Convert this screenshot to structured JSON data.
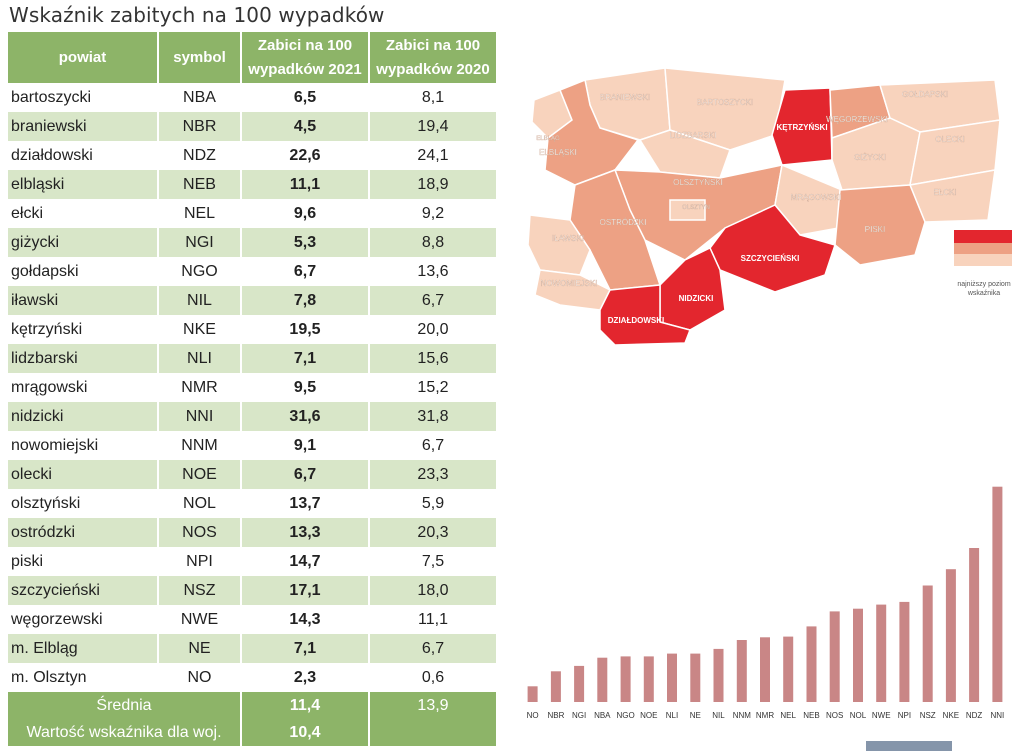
{
  "page": {
    "title": "Wskaźnik zabitych na 100 wypadków"
  },
  "table": {
    "headers": {
      "powiat": "powiat",
      "symbol": "symbol",
      "y2021_line1": "Zabici na 100",
      "y2021_line2": "wypadków 2021",
      "y2020_line1": "Zabici na 100",
      "y2020_line2": "wypadków 2020"
    },
    "rows": [
      {
        "name": "bartoszycki",
        "symbol": "NBA",
        "v2021": "6,5",
        "v2020": "8,1"
      },
      {
        "name": "braniewski",
        "symbol": "NBR",
        "v2021": "4,5",
        "v2020": "19,4"
      },
      {
        "name": "działdowski",
        "symbol": "NDZ",
        "v2021": "22,6",
        "v2020": "24,1"
      },
      {
        "name": "elbląski",
        "symbol": "NEB",
        "v2021": "11,1",
        "v2020": "18,9"
      },
      {
        "name": "ełcki",
        "symbol": "NEL",
        "v2021": "9,6",
        "v2020": "9,2"
      },
      {
        "name": "giżycki",
        "symbol": "NGI",
        "v2021": "5,3",
        "v2020": "8,8"
      },
      {
        "name": "gołdapski",
        "symbol": "NGO",
        "v2021": "6,7",
        "v2020": "13,6"
      },
      {
        "name": "iławski",
        "symbol": "NIL",
        "v2021": "7,8",
        "v2020": "6,7"
      },
      {
        "name": "kętrzyński",
        "symbol": "NKE",
        "v2021": "19,5",
        "v2020": "20,0"
      },
      {
        "name": "lidzbarski",
        "symbol": "NLI",
        "v2021": "7,1",
        "v2020": "15,6"
      },
      {
        "name": "mrągowski",
        "symbol": "NMR",
        "v2021": "9,5",
        "v2020": "15,2"
      },
      {
        "name": "nidzicki",
        "symbol": "NNI",
        "v2021": "31,6",
        "v2020": "31,8"
      },
      {
        "name": "nowomiejski",
        "symbol": "NNM",
        "v2021": "9,1",
        "v2020": "6,7"
      },
      {
        "name": "olecki",
        "symbol": "NOE",
        "v2021": "6,7",
        "v2020": "23,3"
      },
      {
        "name": "olsztyński",
        "symbol": "NOL",
        "v2021": "13,7",
        "v2020": "5,9"
      },
      {
        "name": "ostródzki",
        "symbol": "NOS",
        "v2021": "13,3",
        "v2020": "20,3"
      },
      {
        "name": "piski",
        "symbol": "NPI",
        "v2021": "14,7",
        "v2020": "7,5"
      },
      {
        "name": "szczycieński",
        "symbol": "NSZ",
        "v2021": "17,1",
        "v2020": "18,0"
      },
      {
        "name": "węgorzewski",
        "symbol": "NWE",
        "v2021": "14,3",
        "v2020": "11,1"
      },
      {
        "name": "m. Elbląg",
        "symbol": "NE",
        "v2021": "7,1",
        "v2020": "6,7"
      },
      {
        "name": "m. Olsztyn",
        "symbol": "NO",
        "v2021": "2,3",
        "v2020": "0,6"
      }
    ],
    "summary": {
      "avg_label": "Średnia",
      "avg_2021": "11,4",
      "avg_2020": "13,9",
      "voiv_label": "Wartość wskaźnika dla woj.",
      "voiv_2021": "10,4"
    }
  },
  "map": {
    "colors": {
      "high": "#e3262e",
      "mid": "#eda184",
      "low": "#f8d3bd"
    },
    "labels": {
      "NBR": "BRANIEWSKI",
      "NBA": "BARTOSZYCKI",
      "NKE": "KĘTRZYŃSKI",
      "NGO": "GOŁDAPSKI",
      "NE": "ELBLĄG",
      "NEB": "ELBLĄSKI",
      "NLI": "LIDZBARSKI",
      "NWE": "WĘGORZEWSKI",
      "NGI": "GIŻYCKI",
      "NOE": "OLECKI",
      "NOL": "OLSZTYŃSKI",
      "NO": "OLSZTYN",
      "NMR": "MRĄGOWSKI",
      "NEL": "EŁCKI",
      "NOS": "OSTRÓDZKI",
      "NIL": "IŁAWSKI",
      "NSZ": "SZCZYCIEŃSKI",
      "NPI": "PISKI",
      "NNM": "NOWOMIEJSKI",
      "NNI": "NIDZICKI",
      "NDZ": "DZIAŁDOWSKI"
    },
    "legend_note": "najniższy poziom wskaźnika"
  },
  "chart_data": {
    "type": "bar",
    "categories": [
      "NO",
      "NBR",
      "NGI",
      "NBA",
      "NGO",
      "NOE",
      "NLI",
      "NE",
      "NIL",
      "NNM",
      "NMR",
      "NEL",
      "NEB",
      "NOS",
      "NOL",
      "NWE",
      "NPI",
      "NSZ",
      "NKE",
      "NDZ",
      "NNI"
    ],
    "values": [
      2.3,
      4.5,
      5.3,
      6.5,
      6.7,
      6.7,
      7.1,
      7.1,
      7.8,
      9.1,
      9.5,
      9.6,
      11.1,
      13.3,
      13.7,
      14.3,
      14.7,
      17.1,
      19.5,
      22.6,
      31.6
    ],
    "color": "#c98686",
    "title": "",
    "xlabel": "",
    "ylabel": "",
    "ylim": [
      0,
      32
    ],
    "grid": false
  }
}
